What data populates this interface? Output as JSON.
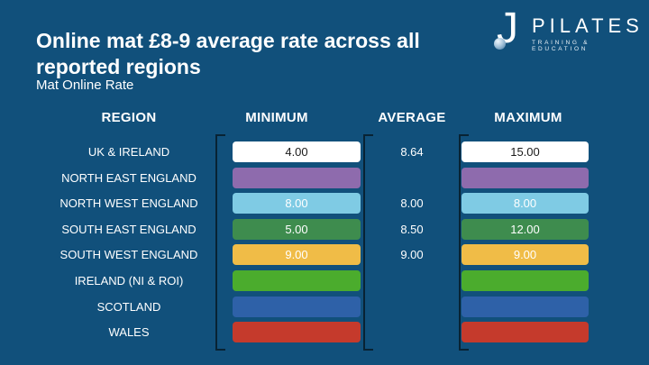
{
  "slide": {
    "title": "Online mat £8-9 average rate across all reported regions",
    "subtitle": "Mat Online Rate"
  },
  "logo": {
    "monogram": "J",
    "brand": "PILATES",
    "tagline": "TRAINING & EDUCATION"
  },
  "palette": {
    "background": "#11507B",
    "bracket": "#082334",
    "text": "#FFFFFF"
  },
  "table": {
    "headers": {
      "region": "REGION",
      "minimum": "MINIMUM",
      "average": "AVERAGE",
      "maximum": "MAXIMUM"
    },
    "rows": [
      {
        "name": "UK & IRELAND",
        "min": "4.00",
        "avg": "8.64",
        "max": "15.00",
        "bar_color": "#FFFFFF",
        "value_color": "#1A1A1A"
      },
      {
        "name": "NORTH EAST ENGLAND",
        "min": "",
        "avg": "",
        "max": "",
        "bar_color": "#8E6BAD",
        "value_color": "#FFFFFF"
      },
      {
        "name": "NORTH WEST ENGLAND",
        "min": "8.00",
        "avg": "8.00",
        "max": "8.00",
        "bar_color": "#7FCBE4",
        "value_color": "#FFFFFF"
      },
      {
        "name": "SOUTH EAST ENGLAND",
        "min": "5.00",
        "avg": "8.50",
        "max": "12.00",
        "bar_color": "#3E8C4E",
        "value_color": "#FFFFFF"
      },
      {
        "name": "SOUTH WEST ENGLAND",
        "min": "9.00",
        "avg": "9.00",
        "max": "9.00",
        "bar_color": "#F0BC47",
        "value_color": "#FFFFFF"
      },
      {
        "name": "IRELAND (NI & ROI)",
        "min": "",
        "avg": "",
        "max": "",
        "bar_color": "#4BAC2D",
        "value_color": "#FFFFFF"
      },
      {
        "name": "SCOTLAND",
        "min": "",
        "avg": "",
        "max": "",
        "bar_color": "#2E61A8",
        "value_color": "#FFFFFF"
      },
      {
        "name": "WALES",
        "min": "",
        "avg": "",
        "max": "",
        "bar_color": "#C53A2C",
        "value_color": "#FFFFFF"
      }
    ]
  },
  "chart_data": {
    "type": "table",
    "title": "Online mat £8-9 average rate across all reported regions",
    "subtitle": "Mat Online Rate",
    "categories": [
      "UK & IRELAND",
      "NORTH EAST ENGLAND",
      "NORTH WEST ENGLAND",
      "SOUTH EAST ENGLAND",
      "SOUTH WEST ENGLAND",
      "IRELAND (NI & ROI)",
      "SCOTLAND",
      "WALES"
    ],
    "series": [
      {
        "name": "MINIMUM",
        "values": [
          4.0,
          null,
          8.0,
          5.0,
          9.0,
          null,
          null,
          null
        ]
      },
      {
        "name": "AVERAGE",
        "values": [
          8.64,
          null,
          8.0,
          8.5,
          9.0,
          null,
          null,
          null
        ]
      },
      {
        "name": "MAXIMUM",
        "values": [
          15.0,
          null,
          8.0,
          12.0,
          9.0,
          null,
          null,
          null
        ]
      }
    ],
    "row_colors": [
      "#FFFFFF",
      "#8E6BAD",
      "#7FCBE4",
      "#3E8C4E",
      "#F0BC47",
      "#4BAC2D",
      "#2E61A8",
      "#C53A2C"
    ],
    "layout": "full-width colored row bars in MINIMUM and MAXIMUM columns, plain text in AVERAGE column, left axis bracket per value column"
  }
}
